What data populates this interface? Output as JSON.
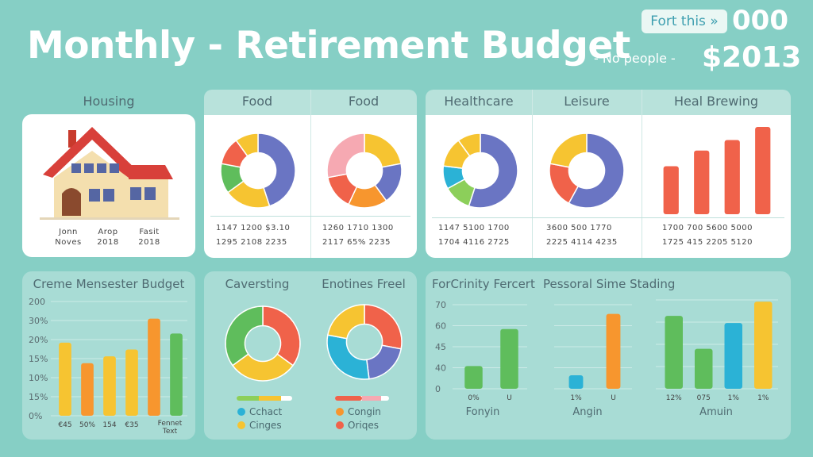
{
  "header": {
    "title": "Monthly - Retirement Budget",
    "badge": "Fort this »",
    "big_number": "000",
    "people": "-   No people  -",
    "amount": "$2013"
  },
  "top_cards": {
    "housing": {
      "title": "Housing",
      "col1": "Jonn\nNoves",
      "col2": "Arop\n2018",
      "col3": "Fasit\n2018"
    },
    "food1": {
      "title": "Food",
      "row1": "1147    1200    $3.10",
      "row2": "1295    2108    2235"
    },
    "food2": {
      "title": "Food",
      "row1": "1260    1710    1300",
      "row2": "2117    65%    2235"
    },
    "healthcare": {
      "title": "Healthcare",
      "row1": "1147    5100    1700",
      "row2": "1704    4116    2725"
    },
    "leisure": {
      "title": "Leisure",
      "row1": "3600    500    1770",
      "row2": "2225    4114    4235"
    },
    "heal_brewing": {
      "title": "Heal Brewing",
      "row1": "1700    700    5600    5000",
      "row2": "1725    415    2205    5120"
    }
  },
  "bottom_cards": {
    "budget": {
      "title": "Creme Mensester Budget",
      "x_last": "Fennet\nText"
    },
    "caversting": {
      "title": "Caversting",
      "legend": [
        "Cchact",
        "Cinges"
      ]
    },
    "enotines": {
      "title": "Enotines Freel",
      "legend": [
        "Congin",
        "Oriqes"
      ]
    },
    "forcrinity": {
      "title": "ForCrinity Fercert",
      "xlabel": "Fonyin"
    },
    "pessoral": {
      "title": "Pessoral Sime Stading",
      "xlabel_a": "Angin",
      "xlabel_b": "Amuin"
    }
  },
  "colors": {
    "background": "#86cfc5",
    "blue": "#6a75c3",
    "yellow": "#f6c431",
    "green": "#5fbd5c",
    "red": "#f0624a",
    "orange": "#f7962e",
    "pink": "#f6a9b2",
    "teal": "#2bb2d6",
    "lightgreen": "#8ccf5a"
  },
  "chart_data": [
    {
      "type": "pie",
      "title": "Food",
      "values": [
        45,
        20,
        13,
        12,
        10
      ],
      "colors": [
        "#6a75c3",
        "#f6c431",
        "#5fbd5c",
        "#f0624a",
        "#f6c431"
      ]
    },
    {
      "type": "pie",
      "title": "Food",
      "values": [
        22,
        18,
        17,
        15,
        28
      ],
      "colors": [
        "#f6c431",
        "#6a75c3",
        "#f7962e",
        "#f0624a",
        "#f6a9b2"
      ]
    },
    {
      "type": "pie",
      "title": "Healthcare",
      "values": [
        55,
        12,
        10,
        13,
        10
      ],
      "colors": [
        "#6a75c3",
        "#8ccf5a",
        "#2bb2d6",
        "#f6c431",
        "#f6c431"
      ]
    },
    {
      "type": "pie",
      "title": "Leisure",
      "values": [
        58,
        20,
        22
      ],
      "colors": [
        "#6a75c3",
        "#f0624a",
        "#f6c431"
      ]
    },
    {
      "type": "bar",
      "title": "Heal Brewing",
      "values": [
        55,
        73,
        85,
        100
      ],
      "colors": [
        "#f0624a",
        "#f0624a",
        "#f0624a",
        "#f0624a"
      ]
    },
    {
      "type": "bar",
      "title": "Creme Mensester Budget",
      "yticks": [
        "200",
        "30%",
        "20%",
        "15%",
        "10%",
        "15%",
        "0%"
      ],
      "categories": [
        "€45",
        "50%",
        "154",
        "€35",
        "",
        ""
      ],
      "values": [
        0.64,
        0.46,
        0.52,
        0.58,
        0.85,
        0.72
      ],
      "colors": [
        "#f6c431",
        "#f7962e",
        "#f6c431",
        "#f6c431",
        "#f7962e",
        "#5fbd5c"
      ]
    },
    {
      "type": "pie",
      "title": "Caversting",
      "values": [
        35,
        30,
        35
      ],
      "colors": [
        "#f0624a",
        "#f6c431",
        "#5fbd5c"
      ]
    },
    {
      "type": "pie",
      "title": "Enotines Freel",
      "values": [
        28,
        20,
        30,
        22
      ],
      "colors": [
        "#f0624a",
        "#6a75c3",
        "#2bb2d6",
        "#f6c431"
      ]
    },
    {
      "type": "bar",
      "title": "ForCrinity Fercert",
      "yticks": [
        "70",
        "60",
        "45",
        "40",
        "0"
      ],
      "categories": [
        "0%",
        "U"
      ],
      "values": [
        0.27,
        0.71
      ],
      "colors": [
        "#5fbd5c",
        "#5fbd5c"
      ]
    },
    {
      "type": "bar",
      "title": "Pessoral Sime Stading",
      "categories": [
        "1%",
        "U"
      ],
      "values": [
        0.16,
        0.89
      ],
      "colors": [
        "#2bb2d6",
        "#f7962e"
      ]
    },
    {
      "type": "bar",
      "categories": [
        "12%",
        "075",
        "1%",
        "1%"
      ],
      "values": [
        0.82,
        0.45,
        0.74,
        0.98
      ],
      "colors": [
        "#5fbd5c",
        "#5fbd5c",
        "#2bb2d6",
        "#f6c431"
      ]
    }
  ]
}
